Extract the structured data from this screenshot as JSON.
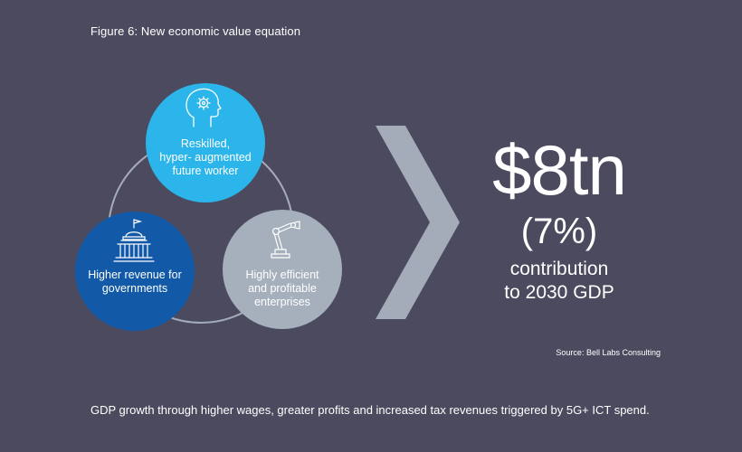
{
  "figure_title": "Figure 6: New economic value equation",
  "circles": {
    "worker": {
      "line1": "Reskilled,",
      "line2": "hyper- augmented",
      "line3": "future worker",
      "color": "#2bb5ea"
    },
    "governments": {
      "line1": "Higher revenue for",
      "line2": "governments",
      "color": "#1259a8"
    },
    "enterprises": {
      "line1": "Highly efficient",
      "line2": "and profitable",
      "line3": "enterprises",
      "color": "#a6b0bd"
    }
  },
  "result": {
    "value": "$8tn",
    "percent": "(7%)",
    "line1": "contribution",
    "line2": "to 2030 GDP"
  },
  "source": "Source: Bell Labs Consulting",
  "caption": "GDP growth through higher wages, greater profits and increased tax revenues triggered by 5G+ ICT spend.",
  "colors": {
    "background": "#4b4a5e",
    "chevron": "#a3acb8",
    "ring": "#a3acb8"
  },
  "icons": {
    "worker": "head-gear-icon",
    "governments": "capitol-building-icon",
    "enterprises": "robot-arm-icon"
  }
}
